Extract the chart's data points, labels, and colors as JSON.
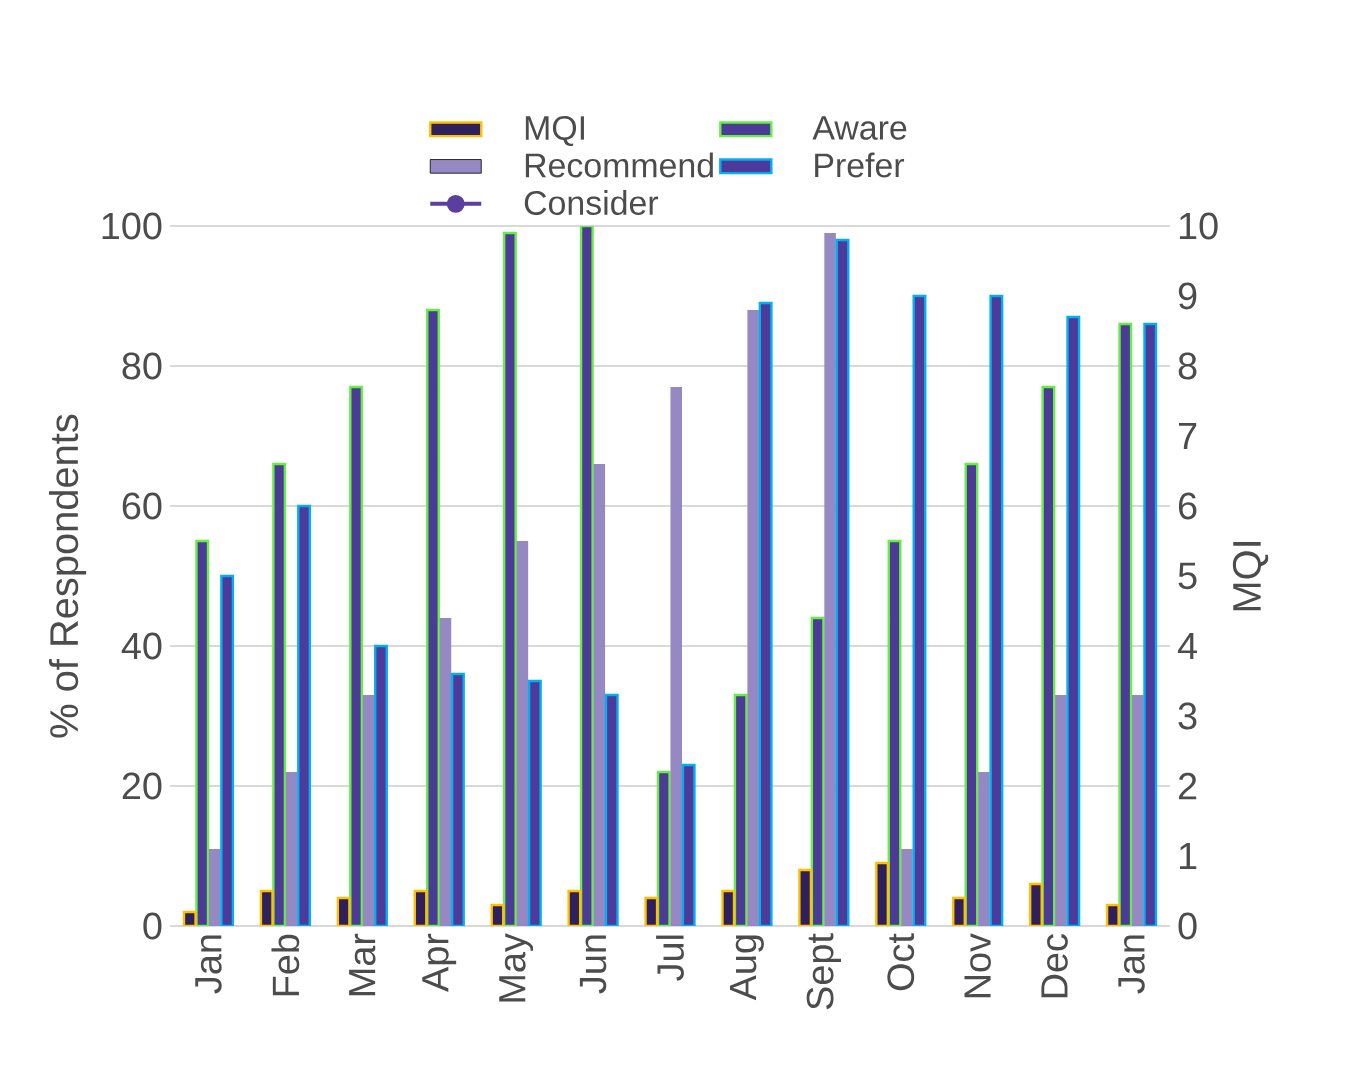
{
  "chart_data": {
    "type": "bar",
    "ylabel": "% of Respondents",
    "y2label": "MQI",
    "categories": [
      "Jan",
      "Feb",
      "Mar",
      "Apr",
      "May",
      "Jun",
      "Jul",
      "Aug",
      "Sept",
      "Oct",
      "Nov",
      "Dec",
      "Jan"
    ],
    "series": [
      {
        "name": "MQI",
        "axis": "y2",
        "color": "#2e1f5e",
        "values": [
          0.2,
          0.5,
          0.4,
          0.5,
          0.3,
          0.5,
          0.4,
          0.5,
          0.8,
          0.9,
          0.4,
          0.6,
          0.3
        ]
      },
      {
        "name": "Aware",
        "color": "#4b3a96",
        "values": [
          55,
          66,
          77,
          88,
          99,
          100,
          22,
          33,
          44,
          55,
          66,
          77,
          86
        ]
      },
      {
        "name": "Recommend",
        "color": "#9688c2",
        "values": [
          11,
          22,
          33,
          44,
          55,
          66,
          77,
          88,
          99,
          11,
          22,
          33,
          33
        ]
      },
      {
        "name": "Prefer",
        "color": "#4e3a9a",
        "values": [
          50,
          60,
          40,
          36,
          35,
          33,
          23,
          89,
          98,
          90,
          90,
          87,
          86
        ]
      },
      {
        "name": "Consider",
        "type": "line",
        "marker": "circle",
        "color": "#5a3ea0",
        "values": [
          null,
          null,
          null,
          null,
          null,
          null,
          null,
          null,
          null,
          null,
          null,
          null,
          null
        ]
      }
    ],
    "ylim": [
      0,
      100
    ],
    "yticks": [
      0,
      20,
      40,
      60,
      80,
      100
    ],
    "y2lim": [
      0,
      10
    ],
    "y2ticks": [
      0,
      1,
      2,
      3,
      4,
      5,
      6,
      7,
      8,
      9,
      10
    ],
    "grid": "y",
    "legend": "top"
  }
}
